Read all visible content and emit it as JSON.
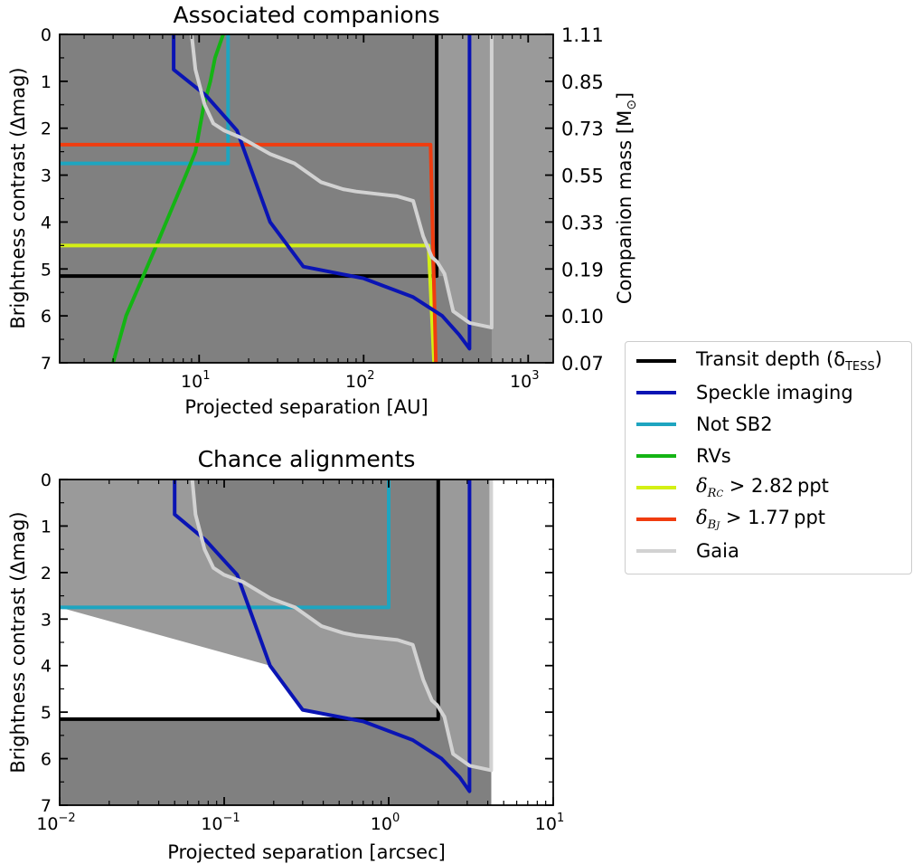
{
  "colors": {
    "transit": "#000000",
    "speckle": "#0a14b4",
    "sb2": "#1ea5c0",
    "rv": "#14b414",
    "rc": "#d4f014",
    "bj": "#f03c0f",
    "gaia": "#d2d2d2",
    "dark_region": "#808080",
    "light_region": "#9a9a9a"
  },
  "legend": {
    "transit": "Transit depth (δ",
    "transit_sub": "TESS",
    "transit_close": ")",
    "speckle": "Speckle imaging",
    "sb2": "Not SB2",
    "rv": "RVs",
    "rc_sym": "δ",
    "rc_sub": "R",
    "rc_subsub": "C",
    "rc_rest": " > 2.82 ppt",
    "bj_sym": "δ",
    "bj_sub": "B",
    "bj_subsub": "J",
    "bj_rest": " > 1.77 ppt",
    "gaia": "Gaia"
  },
  "chart_data": [
    {
      "type": "line",
      "title": "Associated companions",
      "xlabel": "Projected separation [AU]",
      "ylabel": "Brightness contrast (Δmag)",
      "y2label": "Companion mass [M⊙]",
      "xscale": "log",
      "xlim": [
        1.42,
        1420
      ],
      "ylim": [
        7,
        0
      ],
      "x_ticks": [
        10,
        100,
        1000
      ],
      "x_tick_labels": [
        "10",
        "10",
        "10"
      ],
      "x_tick_exps": [
        "1",
        "2",
        "3"
      ],
      "y_ticks": [
        0,
        1,
        2,
        3,
        4,
        5,
        6,
        7
      ],
      "y_tick_labels": [
        "0",
        "1",
        "2",
        "3",
        "4",
        "5",
        "6",
        "7"
      ],
      "y2_ticks": [
        0,
        1,
        2,
        3,
        4,
        5,
        6,
        7
      ],
      "y2_tick_labels": [
        "1.11",
        "0.85",
        "0.73",
        "0.55",
        "0.33",
        "0.19",
        "0.10",
        "0.07"
      ],
      "series": [
        {
          "key": "transit",
          "name": "Transit depth (δTESS)",
          "x": [
            1.42,
            278,
            278
          ],
          "y": [
            5.15,
            5.15,
            0
          ]
        },
        {
          "key": "speckle",
          "name": "Speckle imaging",
          "x": [
            7.0,
            7.0,
            11,
            17,
            27,
            43,
            100,
            200,
            300,
            380,
            440,
            440
          ],
          "y": [
            0,
            0.75,
            1.3,
            2.05,
            4.0,
            4.95,
            5.2,
            5.6,
            6.0,
            6.4,
            6.7,
            0
          ]
        },
        {
          "key": "sb2",
          "name": "Not SB2",
          "x": [
            1.42,
            15,
            15
          ],
          "y": [
            2.75,
            2.75,
            0
          ]
        },
        {
          "key": "rv",
          "name": "RVs",
          "x": [
            3,
            3.6,
            5.5,
            8.3,
            9.5,
            10.7,
            11.7,
            12.5,
            14
          ],
          "y": [
            7,
            6.0,
            4.5,
            3.0,
            2.5,
            1.5,
            1.0,
            0.5,
            0
          ]
        },
        {
          "key": "rc",
          "name": "δRc > 2.82 ppt",
          "x": [
            1.42,
            248,
            268
          ],
          "y": [
            4.5,
            4.5,
            7
          ]
        },
        {
          "key": "bj",
          "name": "δBJ > 1.77 ppt",
          "x": [
            1.42,
            255,
            275
          ],
          "y": [
            2.35,
            2.35,
            7
          ]
        },
        {
          "key": "gaia",
          "name": "Gaia",
          "x": [
            9.0,
            9.5,
            10.8,
            12.2,
            14.2,
            18,
            27,
            38,
            55,
            75,
            90,
            120,
            160,
            200,
            230,
            260,
            280,
            310,
            350,
            440,
            600,
            600
          ],
          "y": [
            0,
            0.75,
            1.5,
            1.9,
            2.05,
            2.2,
            2.55,
            2.75,
            3.15,
            3.3,
            3.35,
            3.4,
            3.45,
            3.55,
            4.3,
            4.75,
            4.85,
            5.1,
            5.9,
            6.15,
            6.25,
            0
          ]
        }
      ]
    },
    {
      "type": "line",
      "title": "Chance alignments",
      "xlabel": "Projected separation [arcsec]",
      "ylabel": "Brightness contrast (Δmag)",
      "xscale": "log",
      "xlim": [
        0.01,
        10
      ],
      "ylim": [
        7,
        0
      ],
      "x_ticks": [
        0.01,
        0.1,
        1,
        10
      ],
      "x_tick_labels": [
        "10",
        "10",
        "10",
        "10"
      ],
      "x_tick_exps": [
        "−2",
        "−1",
        "0",
        "1"
      ],
      "y_ticks": [
        0,
        1,
        2,
        3,
        4,
        5,
        6,
        7
      ],
      "y_tick_labels": [
        "0",
        "1",
        "2",
        "3",
        "4",
        "5",
        "6",
        "7"
      ],
      "series": [
        {
          "key": "transit",
          "name": "Transit depth (δTESS)",
          "x": [
            0.01,
            2.0,
            2.0
          ],
          "y": [
            5.15,
            5.15,
            0
          ]
        },
        {
          "key": "speckle",
          "name": "Speckle imaging",
          "x": [
            0.05,
            0.05,
            0.077,
            0.12,
            0.19,
            0.3,
            0.7,
            1.4,
            2.1,
            2.7,
            3.1,
            3.1
          ],
          "y": [
            0,
            0.75,
            1.3,
            2.05,
            4.0,
            4.95,
            5.2,
            5.6,
            6.0,
            6.4,
            6.7,
            0
          ]
        },
        {
          "key": "sb2",
          "name": "Not SB2",
          "x": [
            0.01,
            1.0,
            1.0
          ],
          "y": [
            2.75,
            2.75,
            0
          ]
        },
        {
          "key": "gaia",
          "name": "Gaia",
          "x": [
            0.064,
            0.067,
            0.076,
            0.086,
            0.1,
            0.13,
            0.19,
            0.27,
            0.39,
            0.53,
            0.63,
            0.84,
            1.13,
            1.4,
            1.62,
            1.83,
            1.97,
            2.18,
            2.46,
            3.1,
            4.2,
            4.2
          ],
          "y": [
            0,
            0.75,
            1.5,
            1.9,
            2.05,
            2.2,
            2.55,
            2.75,
            3.15,
            3.3,
            3.35,
            3.4,
            3.45,
            3.55,
            4.3,
            4.75,
            4.85,
            5.1,
            5.9,
            6.15,
            6.25,
            0
          ]
        }
      ]
    }
  ]
}
